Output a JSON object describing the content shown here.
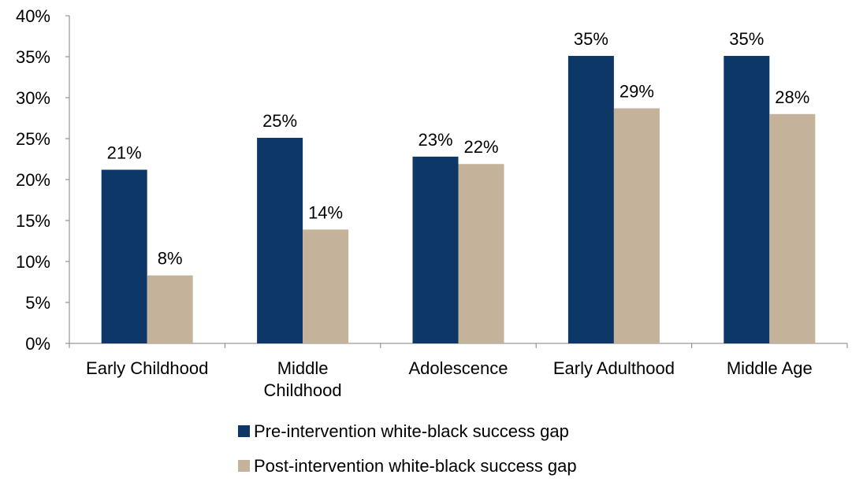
{
  "chart_data": {
    "type": "bar",
    "categories": [
      [
        "Early Childhood"
      ],
      [
        "Middle",
        "Childhood"
      ],
      [
        "Adolescence"
      ],
      [
        "Early Adulthood"
      ],
      [
        "Middle Age"
      ]
    ],
    "series": [
      {
        "name": "Pre-intervention white-black success gap",
        "color": "#0d3766",
        "values": [
          21.2,
          25.1,
          22.8,
          35.1,
          35.1
        ],
        "labels": [
          "21%",
          "25%",
          "23%",
          "35%",
          "35%"
        ]
      },
      {
        "name": "Post-intervention white-black success gap",
        "color": "#c4b39a",
        "values": [
          8.3,
          13.9,
          21.9,
          28.7,
          28.0
        ],
        "labels": [
          "8%",
          "14%",
          "22%",
          "29%",
          "28%"
        ]
      }
    ],
    "ylim": [
      0,
      40
    ],
    "yticks": [
      0,
      5,
      10,
      15,
      20,
      25,
      30,
      35,
      40
    ],
    "ytick_labels": [
      "0%",
      "5%",
      "10%",
      "15%",
      "20%",
      "25%",
      "30%",
      "35%",
      "40%"
    ],
    "title": "",
    "xlabel": "",
    "ylabel": "",
    "grid": false,
    "legend_position": "bottom"
  }
}
